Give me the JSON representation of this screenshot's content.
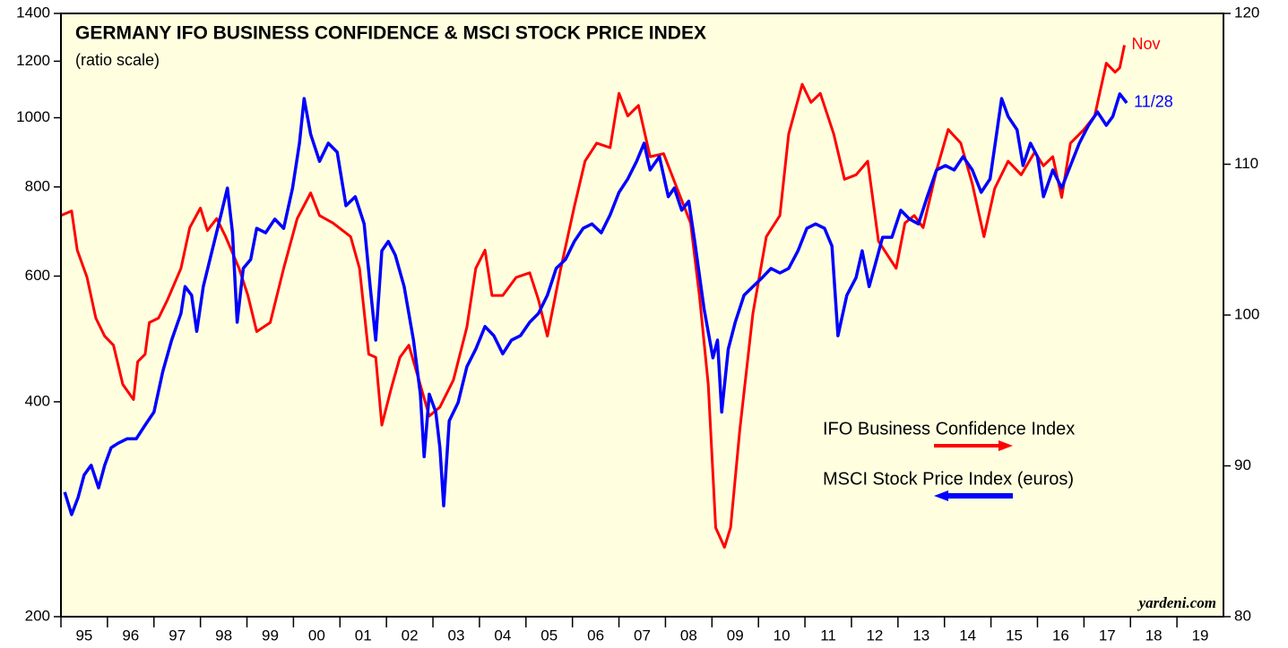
{
  "chart_data": {
    "type": "line",
    "title": "GERMANY IFO BUSINESS CONFIDENCE & MSCI STOCK PRICE INDEX",
    "subtitle": "(ratio scale)",
    "credit": "yardeni.com",
    "xlim": [
      1995,
      2020
    ],
    "xticks": [
      {
        "value": 1995,
        "label": "95"
      },
      {
        "value": 1996,
        "label": "96"
      },
      {
        "value": 1997,
        "label": "97"
      },
      {
        "value": 1998,
        "label": "98"
      },
      {
        "value": 1999,
        "label": "99"
      },
      {
        "value": 2000,
        "label": "00"
      },
      {
        "value": 2001,
        "label": "01"
      },
      {
        "value": 2002,
        "label": "02"
      },
      {
        "value": 2003,
        "label": "03"
      },
      {
        "value": 2004,
        "label": "04"
      },
      {
        "value": 2005,
        "label": "05"
      },
      {
        "value": 2006,
        "label": "06"
      },
      {
        "value": 2007,
        "label": "07"
      },
      {
        "value": 2008,
        "label": "08"
      },
      {
        "value": 2009,
        "label": "09"
      },
      {
        "value": 2010,
        "label": "10"
      },
      {
        "value": 2011,
        "label": "11"
      },
      {
        "value": 2012,
        "label": "12"
      },
      {
        "value": 2013,
        "label": "13"
      },
      {
        "value": 2014,
        "label": "14"
      },
      {
        "value": 2015,
        "label": "15"
      },
      {
        "value": 2016,
        "label": "16"
      },
      {
        "value": 2017,
        "label": "17"
      },
      {
        "value": 2018,
        "label": "18"
      },
      {
        "value": 2019,
        "label": "19"
      }
    ],
    "ylim": [
      200,
      1400
    ],
    "yticks": [
      200,
      400,
      600,
      800,
      1000,
      1200,
      1400
    ],
    "log_scale": true,
    "y2lim": [
      80,
      120
    ],
    "y2ticks": [
      80,
      90,
      100,
      110,
      120
    ],
    "background": "#ffffe0",
    "series": [
      {
        "name": "IFO Business Confidence Index",
        "color": "#ff0000",
        "axis": "y2",
        "end_label": "Nov",
        "x": [
          1995.0,
          1995.23,
          1995.35,
          1995.56,
          1995.75,
          1995.94,
          1996.13,
          1996.33,
          1996.56,
          1996.65,
          1996.81,
          1996.9,
          1997.1,
          1997.29,
          1997.58,
          1997.77,
          1998.0,
          1998.15,
          1998.35,
          1998.54,
          1998.83,
          1999.02,
          1999.21,
          1999.5,
          1999.79,
          2000.08,
          2000.37,
          2000.56,
          2000.85,
          2001.23,
          2001.42,
          2001.62,
          2001.77,
          2001.9,
          2002.1,
          2002.29,
          2002.48,
          2002.67,
          2002.92,
          2003.15,
          2003.44,
          2003.73,
          2003.92,
          2004.12,
          2004.27,
          2004.5,
          2004.79,
          2005.08,
          2005.27,
          2005.46,
          2005.75,
          2006.04,
          2006.27,
          2006.52,
          2006.81,
          2007.0,
          2007.19,
          2007.42,
          2007.67,
          2007.96,
          2008.25,
          2008.54,
          2008.73,
          2008.92,
          2009.08,
          2009.27,
          2009.4,
          2009.6,
          2009.88,
          2010.17,
          2010.46,
          2010.65,
          2010.94,
          2011.13,
          2011.33,
          2011.62,
          2011.85,
          2012.1,
          2012.35,
          2012.58,
          2012.77,
          2012.96,
          2013.15,
          2013.35,
          2013.54,
          2013.83,
          2014.08,
          2014.35,
          2014.6,
          2014.85,
          2015.08,
          2015.37,
          2015.65,
          2015.94,
          2016.13,
          2016.33,
          2016.52,
          2016.71,
          2017.0,
          2017.23,
          2017.48,
          2017.67,
          2017.77,
          2017.87
        ],
        "values": [
          106.6,
          106.9,
          104.3,
          102.5,
          99.8,
          98.6,
          98.0,
          95.4,
          94.4,
          96.9,
          97.4,
          99.5,
          99.8,
          101.0,
          103.1,
          105.8,
          107.1,
          105.6,
          106.4,
          105.2,
          103.1,
          101.3,
          98.9,
          99.5,
          103.1,
          106.4,
          108.1,
          106.6,
          106.1,
          105.2,
          103.1,
          97.4,
          97.2,
          92.7,
          95.1,
          97.2,
          98.0,
          96.0,
          93.3,
          93.9,
          95.7,
          99.2,
          103.1,
          104.3,
          101.3,
          101.3,
          102.5,
          102.8,
          101.0,
          98.6,
          103.1,
          107.2,
          110.2,
          111.4,
          111.1,
          114.7,
          113.2,
          113.9,
          110.5,
          110.7,
          108.4,
          106.1,
          101.3,
          95.4,
          85.9,
          84.6,
          85.9,
          92.4,
          100.1,
          105.2,
          106.6,
          112.0,
          115.3,
          114.1,
          114.7,
          112.0,
          109.0,
          109.3,
          110.2,
          104.9,
          104.0,
          103.1,
          106.1,
          106.6,
          105.8,
          109.6,
          112.3,
          111.4,
          108.7,
          105.2,
          108.4,
          110.2,
          109.3,
          110.8,
          109.9,
          110.5,
          107.8,
          111.4,
          112.3,
          113.2,
          116.7,
          116.1,
          116.4,
          117.9
        ]
      },
      {
        "name": "MSCI Stock Price Index (euros)",
        "color": "#0000ff",
        "end_label": "11/28",
        "x": [
          1995.08,
          1995.23,
          1995.37,
          1995.5,
          1995.65,
          1995.81,
          1995.94,
          1996.08,
          1996.23,
          1996.42,
          1996.62,
          1996.81,
          1997.0,
          1997.19,
          1997.38,
          1997.58,
          1997.67,
          1997.81,
          1997.92,
          1998.06,
          1998.25,
          1998.44,
          1998.58,
          1998.69,
          1998.79,
          1998.92,
          1999.08,
          1999.21,
          1999.4,
          1999.6,
          1999.79,
          1999.98,
          2000.13,
          2000.23,
          2000.37,
          2000.56,
          2000.75,
          2000.94,
          2001.13,
          2001.33,
          2001.52,
          2001.65,
          2001.77,
          2001.9,
          2002.04,
          2002.19,
          2002.38,
          2002.58,
          2002.73,
          2002.81,
          2002.92,
          2003.06,
          2003.15,
          2003.23,
          2003.35,
          2003.54,
          2003.73,
          2003.92,
          2004.12,
          2004.31,
          2004.5,
          2004.69,
          2004.88,
          2005.08,
          2005.27,
          2005.46,
          2005.65,
          2005.85,
          2006.04,
          2006.23,
          2006.42,
          2006.62,
          2006.81,
          2007.0,
          2007.19,
          2007.38,
          2007.54,
          2007.67,
          2007.87,
          2008.06,
          2008.19,
          2008.35,
          2008.5,
          2008.63,
          2008.83,
          2009.02,
          2009.12,
          2009.21,
          2009.35,
          2009.5,
          2009.69,
          2009.88,
          2010.08,
          2010.27,
          2010.46,
          2010.65,
          2010.85,
          2011.04,
          2011.23,
          2011.42,
          2011.58,
          2011.71,
          2011.9,
          2012.1,
          2012.23,
          2012.38,
          2012.54,
          2012.67,
          2012.87,
          2013.06,
          2013.25,
          2013.44,
          2013.63,
          2013.83,
          2014.02,
          2014.21,
          2014.4,
          2014.6,
          2014.79,
          2014.98,
          2015.12,
          2015.23,
          2015.37,
          2015.56,
          2015.69,
          2015.85,
          2016.0,
          2016.13,
          2016.33,
          2016.52,
          2016.71,
          2016.9,
          2017.1,
          2017.29,
          2017.48,
          2017.62,
          2017.77,
          2017.92
        ],
        "values": [
          299,
          278,
          294,
          316,
          326,
          303,
          326,
          345,
          350,
          355,
          355,
          371,
          387,
          441,
          488,
          532,
          580,
          564,
          502,
          580,
          651,
          731,
          797,
          690,
          517,
          615,
          633,
          700,
          690,
          721,
          700,
          797,
          921,
          1064,
          948,
          869,
          921,
          895,
          753,
          775,
          710,
          580,
          488,
          651,
          671,
          642,
          580,
          488,
          410,
          335,
          410,
          387,
          345,
          286,
          376,
          399,
          448,
          474,
          510,
          495,
          467,
          488,
          495,
          517,
          532,
          564,
          615,
          633,
          671,
          700,
          710,
          690,
          731,
          786,
          821,
          869,
          921,
          845,
          882,
          775,
          797,
          742,
          764,
          671,
          540,
          461,
          488,
          387,
          474,
          517,
          564,
          580,
          597,
          615,
          606,
          615,
          651,
          700,
          710,
          700,
          661,
          495,
          564,
          597,
          651,
          580,
          633,
          680,
          680,
          742,
          721,
          710,
          775,
          845,
          857,
          845,
          882,
          845,
          786,
          821,
          948,
          1064,
          1004,
          962,
          857,
          921,
          882,
          775,
          845,
          797,
          857,
          921,
          976,
          1019,
          976,
          1004,
          1080,
          1049
        ]
      }
    ]
  }
}
